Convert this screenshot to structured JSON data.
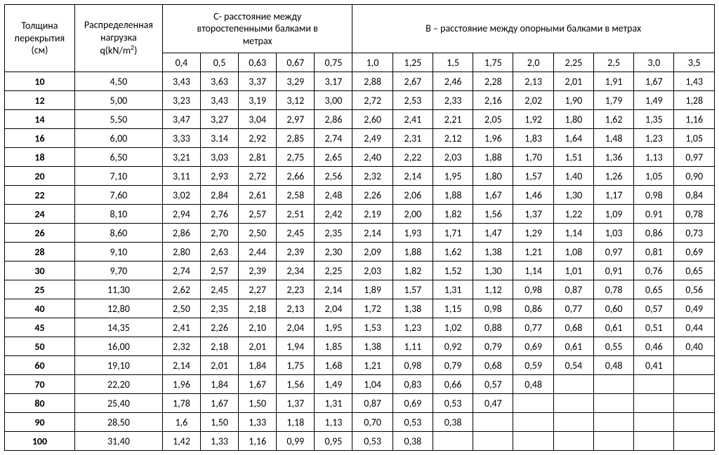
{
  "table": {
    "type": "table",
    "background_color": "#ffffff",
    "border_color": "#000000",
    "font_family": "Calibri",
    "header_fontsize": 14,
    "cell_fontsize": 14,
    "headers": {
      "col0_line1": "Толщина",
      "col0_line2": "перекрытия",
      "col0_line3": "(см)",
      "col1_line1": "Распределенная",
      "col1_line2": "нагрузка",
      "col1_line3_pre": "q(kN/m",
      "col1_line3_sup": "2",
      "col1_line3_post": ")",
      "group_c_line1": "C- расстояние между",
      "group_c_line2": "второстепенными балками в",
      "group_c_line3": "метрах",
      "group_b": "B – расстояние между опорными балками в метрах",
      "c_sub": [
        "0,4",
        "0,5",
        "0,63",
        "0,67",
        "0,75"
      ],
      "b_sub": [
        "1,0",
        "1,25",
        "1,5",
        "1,75",
        "2,0",
        "2,25",
        "2,5",
        "3,0",
        "3,5"
      ]
    },
    "rows": [
      {
        "t": "10",
        "q": "4,50",
        "c": [
          "3,43",
          "3,63",
          "3,37",
          "3,29",
          "3,17"
        ],
        "b": [
          "2,88",
          "2,67",
          "2,46",
          "2,28",
          "2,13",
          "2,01",
          "1,91",
          "1,67",
          "1,43"
        ]
      },
      {
        "t": "12",
        "q": "5,00",
        "c": [
          "3,23",
          "3,43",
          "3,19",
          "3,12",
          "3,00"
        ],
        "b": [
          "2,72",
          "2,53",
          "2,33",
          "2,16",
          "2,02",
          "1,90",
          "1,79",
          "1,49",
          "1,28"
        ]
      },
      {
        "t": "14",
        "q": "5,50",
        "c": [
          "3,47",
          "3,27",
          "3,04",
          "2,97",
          "2,86"
        ],
        "b": [
          "2,60",
          "2,41",
          "2,21",
          "2,05",
          "1,92",
          "1,80",
          "1,62",
          "1,35",
          "1,16"
        ]
      },
      {
        "t": "16",
        "q": "6,00",
        "c": [
          "3,33",
          "3.14",
          "2,92",
          "2,85",
          "2,74"
        ],
        "b": [
          "2,49",
          "2,31",
          "2,12",
          "1,96",
          "1,83",
          "1,64",
          "1,48",
          "1,23",
          "1,05"
        ]
      },
      {
        "t": "18",
        "q": "6,50",
        "c": [
          "3,21",
          "3,03",
          "2,81",
          "2,75",
          "2,65"
        ],
        "b": [
          "2,40",
          "2,22",
          "2,03",
          "1,88",
          "1,70",
          "1,51",
          "1,36",
          "1,13",
          "0,97"
        ]
      },
      {
        "t": "20",
        "q": "7,10",
        "c": [
          "3,11",
          "2,93",
          "2,72",
          "2,66",
          "2,56"
        ],
        "b": [
          "2,32",
          "2,14",
          "1,95",
          "1,80",
          "1,57",
          "1,40",
          "1,26",
          "1,05",
          "0,90"
        ]
      },
      {
        "t": "22",
        "q": "7,60",
        "c": [
          "3,02",
          "2,84",
          "2,61",
          "2,58",
          "2,48"
        ],
        "b": [
          "2,26",
          "2,06",
          "1,88",
          "1,67",
          "1,46",
          "1,30",
          "1,17",
          "0,98",
          "0,84"
        ]
      },
      {
        "t": "24",
        "q": "8,10",
        "c": [
          "2,94",
          "2,76",
          "2,57",
          "2,51",
          "2,42"
        ],
        "b": [
          "2,19",
          "2,00",
          "1,82",
          "1,56",
          "1,37",
          "1,22",
          "1,09",
          "0.91",
          "0,78"
        ]
      },
      {
        "t": "26",
        "q": "8,60",
        "c": [
          "2,86",
          "2,70",
          "2,50",
          "2,45",
          "2,35"
        ],
        "b": [
          "2,14",
          "1,93",
          "1,71",
          "1,47",
          "1,29",
          "1,14",
          "1,03",
          "0,86",
          "0,73"
        ]
      },
      {
        "t": "28",
        "q": "9,10",
        "c": [
          "2,80",
          "2,63",
          "2,44",
          "2,39",
          "2,30"
        ],
        "b": [
          "2,09",
          "1,88",
          "1,62",
          "1,38",
          "1,21",
          "1,08",
          "0,97",
          "0,81",
          "0,69"
        ]
      },
      {
        "t": "30",
        "q": "9,70",
        "c": [
          "2,74",
          "2,57",
          "2,39",
          "2,34",
          "2,25"
        ],
        "b": [
          "2,03",
          "1,82",
          "1,52",
          "1,30",
          "1,14",
          "1,01",
          "0,91",
          "0,76",
          "0,65"
        ]
      },
      {
        "t": "25",
        "q": "11,30",
        "c": [
          "2,62",
          "2,45",
          "2,27",
          "2,23",
          "2,14"
        ],
        "b": [
          "1,89",
          "1,57",
          "1,31",
          "1,12",
          "0,98",
          "0,87",
          "0,78",
          "0,65",
          "0,56"
        ]
      },
      {
        "t": "40",
        "q": "12,80",
        "c": [
          "2,50",
          "2,35",
          "2,18",
          "2,13",
          "2,04"
        ],
        "b": [
          "1,72",
          "1,38",
          "1,15",
          "0,98",
          "0,86",
          "0,77",
          "0,60",
          "0,57",
          "0,49"
        ]
      },
      {
        "t": "45",
        "q": "14,35",
        "c": [
          "2,41",
          "2,26",
          "2,10",
          "2,04",
          "1,95"
        ],
        "b": [
          "1,53",
          "1,23",
          "1,02",
          "0,88",
          "0,77",
          "0,68",
          "0,61",
          "0,51",
          "0,44"
        ]
      },
      {
        "t": "50",
        "q": "16,00",
        "c": [
          "2,32",
          "2,18",
          "2,01",
          "1,94",
          "1,85"
        ],
        "b": [
          "1,38",
          "1,11",
          "0,92",
          "0,79",
          "0,69",
          "0,61",
          "0,55",
          "0,46",
          "0,40"
        ]
      },
      {
        "t": "60",
        "q": "19,10",
        "c": [
          "2,14",
          "2,01",
          "1,84",
          "1,75",
          "1,68"
        ],
        "b": [
          "1,21",
          "0,98",
          "0,79",
          "0,68",
          "0,59",
          "0,54",
          "0,48",
          "0,41",
          ""
        ]
      },
      {
        "t": "70",
        "q": "22,20",
        "c": [
          "1,96",
          "1,84",
          "1,67",
          "1,56",
          "1,49"
        ],
        "b": [
          "1,04",
          "0,83",
          "0,66",
          "0,57",
          "0,48",
          "",
          "",
          "",
          ""
        ]
      },
      {
        "t": "80",
        "q": "25,40",
        "c": [
          "1,78",
          "1,67",
          "1,50",
          "1,37",
          "1,31"
        ],
        "b": [
          "0,87",
          "0,69",
          "0,53",
          "0,47",
          "",
          "",
          "",
          "",
          ""
        ]
      },
      {
        "t": "90",
        "q": "28,50",
        "c": [
          "1,6",
          "1,50",
          "1,33",
          "1,18",
          "1,13"
        ],
        "b": [
          "0,70",
          "0,53",
          "0,38",
          "",
          "",
          "",
          "",
          "",
          ""
        ]
      },
      {
        "t": "100",
        "q": "31,40",
        "c": [
          "1,42",
          "1,33",
          "1,16",
          "0,99",
          "0,95"
        ],
        "b": [
          "0,53",
          "0,38",
          "",
          "",
          "",
          "",
          "",
          "",
          ""
        ]
      }
    ]
  }
}
